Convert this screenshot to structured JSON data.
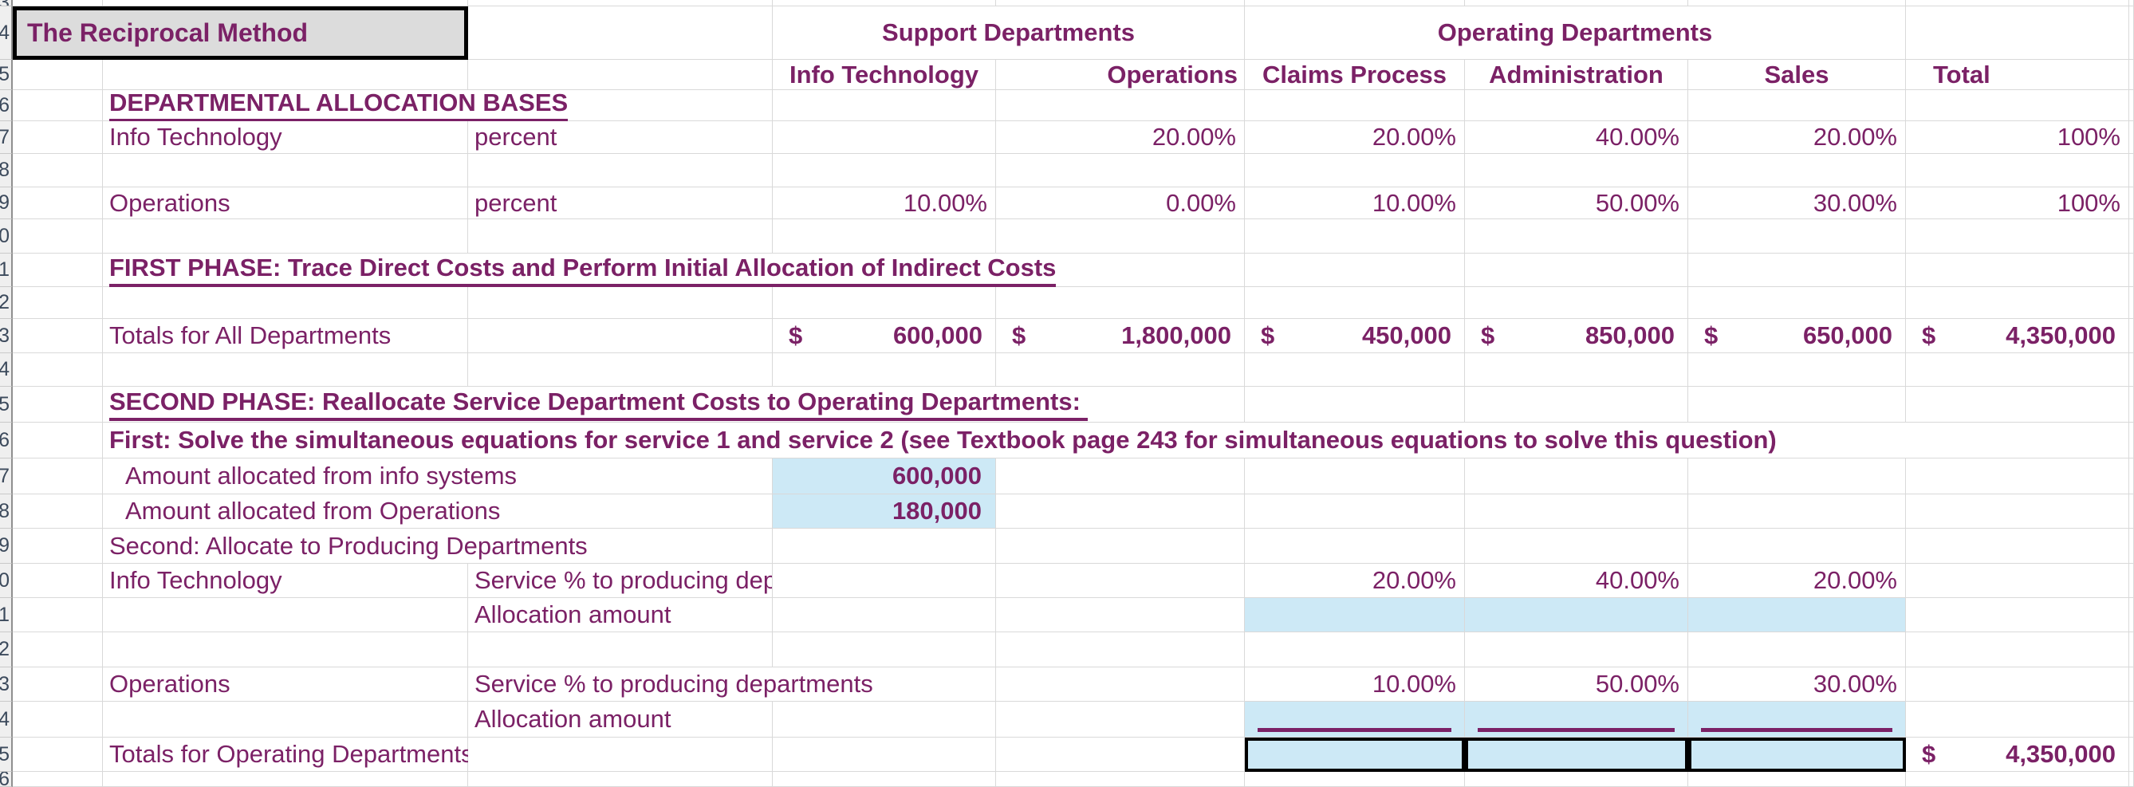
{
  "sheet": {
    "colors": {
      "text_accent": "#7b2166",
      "highlight_blue": "#cde9f6",
      "title_cell_bg": "#dcdcdc",
      "gridline": "#d9d9d9",
      "heavy_border": "#000000"
    },
    "rows": [
      {
        "n": "3",
        "cells": []
      },
      {
        "n": "4",
        "cells": [
          {
            "c": 1,
            "s": 2,
            "t": "The Reciprocal Method",
            "k": "titlebox",
            "name": "sheet-title-cell"
          },
          {
            "c": 4,
            "s": 2,
            "t": "Support Departments",
            "k": "ghead",
            "name": "support-departments-group-header"
          },
          {
            "c": 6,
            "s": 3,
            "t": "Operating Departments",
            "k": "ghead",
            "name": "operating-departments-group-header"
          }
        ]
      },
      {
        "n": "5",
        "cells": [
          {
            "c": 4,
            "t": "Info Technology",
            "k": "chead ctr",
            "name": "col-header-info-technology"
          },
          {
            "c": 5,
            "t": "Operations",
            "k": "chead rgt",
            "name": "col-header-operations"
          },
          {
            "c": 6,
            "t": "Claims Process",
            "k": "chead ctr",
            "name": "col-header-claims-process"
          },
          {
            "c": 7,
            "t": "Administration",
            "k": "chead ctr",
            "name": "col-header-administration"
          },
          {
            "c": 8,
            "t": "Sales",
            "k": "chead ctr",
            "name": "col-header-sales"
          },
          {
            "c": 9,
            "t": "Total",
            "k": "chead hleft",
            "name": "col-header-total"
          }
        ]
      },
      {
        "n": "6",
        "cells": [
          {
            "c": 2,
            "s": 2,
            "t": "DEPARTMENTAL ALLOCATION BASES",
            "k": "h u lab",
            "name": "section-departmental-allocation-bases"
          }
        ]
      },
      {
        "n": "7",
        "cells": [
          {
            "c": 2,
            "t": "Info Technology",
            "k": "lab",
            "name": "row-label-info-technology"
          },
          {
            "c": 3,
            "t": "percent",
            "k": "lab",
            "name": "basis-label-percent"
          },
          {
            "c": 5,
            "t": "20.00%",
            "k": "pct",
            "name": "it-pct-operations"
          },
          {
            "c": 6,
            "t": "20.00%",
            "k": "pct",
            "name": "it-pct-claims-process"
          },
          {
            "c": 7,
            "t": "40.00%",
            "k": "pct",
            "name": "it-pct-administration"
          },
          {
            "c": 8,
            "t": "20.00%",
            "k": "pct",
            "name": "it-pct-sales"
          },
          {
            "c": 9,
            "t": "100%",
            "k": "pct",
            "name": "it-pct-total"
          }
        ]
      },
      {
        "n": "8",
        "cells": []
      },
      {
        "n": "9",
        "cells": [
          {
            "c": 2,
            "t": "Operations",
            "k": "lab",
            "name": "row-label-operations"
          },
          {
            "c": 3,
            "t": "percent",
            "k": "lab",
            "name": "basis-label-percent"
          },
          {
            "c": 4,
            "t": "10.00%",
            "k": "pct",
            "name": "ops-pct-info-technology"
          },
          {
            "c": 5,
            "t": "0.00%",
            "k": "pct",
            "name": "ops-pct-operations"
          },
          {
            "c": 6,
            "t": "10.00%",
            "k": "pct",
            "name": "ops-pct-claims-process"
          },
          {
            "c": 7,
            "t": "50.00%",
            "k": "pct",
            "name": "ops-pct-administration"
          },
          {
            "c": 8,
            "t": "30.00%",
            "k": "pct",
            "name": "ops-pct-sales"
          },
          {
            "c": 9,
            "t": "100%",
            "k": "pct",
            "name": "ops-pct-total"
          }
        ]
      },
      {
        "n": "10",
        "cells": []
      },
      {
        "n": "11",
        "cells": [
          {
            "c": 2,
            "s": 4,
            "t": "FIRST PHASE: Trace Direct Costs and Perform Initial Allocation of Indirect Costs",
            "k": "h u lab",
            "name": "section-first-phase"
          }
        ]
      },
      {
        "n": "12",
        "cells": []
      },
      {
        "n": "13",
        "cells": [
          {
            "c": 2,
            "t": "Totals for All Departments",
            "k": "lab",
            "name": "row-label-totals-all-departments"
          },
          {
            "c": 4,
            "cur": "$",
            "t": "600,000",
            "k": "acct",
            "name": "total-info-technology"
          },
          {
            "c": 5,
            "cur": "$",
            "t": "1,800,000",
            "k": "acct",
            "name": "total-operations"
          },
          {
            "c": 6,
            "cur": "$",
            "t": "450,000",
            "k": "acct",
            "name": "total-claims-process"
          },
          {
            "c": 7,
            "cur": "$",
            "t": "850,000",
            "k": "acct",
            "name": "total-administration"
          },
          {
            "c": 8,
            "cur": "$",
            "t": "650,000",
            "k": "acct",
            "name": "total-sales"
          },
          {
            "c": 9,
            "cur": "$",
            "t": "4,350,000",
            "k": "acct",
            "name": "total-all-departments"
          }
        ]
      },
      {
        "n": "14",
        "cells": []
      },
      {
        "n": "15",
        "cells": [
          {
            "c": 2,
            "s": 4,
            "t": "SECOND PHASE: Reallocate Service Department Costs to Operating Departments: ",
            "k": "h u lab",
            "name": "section-second-phase"
          }
        ]
      },
      {
        "n": "16",
        "cells": [
          {
            "c": 2,
            "s": 8,
            "t": "First: Solve the simultaneous equations for service 1 and service 2 (see Textbook page 243 for simultaneous equations to solve this question)",
            "k": "h lab",
            "name": "instruction-simultaneous-equations"
          }
        ]
      },
      {
        "n": "17",
        "cells": [
          {
            "c": 2,
            "s": 2,
            "t": "Amount allocated from info systems",
            "k": "lab ind",
            "name": "row-label-amount-from-info-systems"
          },
          {
            "c": 4,
            "t": "600,000",
            "k": "num blue",
            "name": "amount-allocated-info-systems"
          }
        ]
      },
      {
        "n": "18",
        "cells": [
          {
            "c": 2,
            "s": 2,
            "t": "Amount allocated from Operations",
            "k": "lab ind",
            "name": "row-label-amount-from-operations"
          },
          {
            "c": 4,
            "t": "180,000",
            "k": "num blue",
            "name": "amount-allocated-operations"
          }
        ]
      },
      {
        "n": "19",
        "cells": [
          {
            "c": 2,
            "s": 2,
            "t": "Second: Allocate to Producing Departments",
            "k": "lab",
            "name": "subsection-allocate-producing-departments"
          }
        ]
      },
      {
        "n": "20",
        "cells": [
          {
            "c": 2,
            "t": "Info Technology",
            "k": "lab",
            "name": "row-label-info-technology"
          },
          {
            "c": 3,
            "t": "Service % to producing departments",
            "k": "lab clip",
            "name": "service-pct-label-clipped"
          },
          {
            "c": 6,
            "t": "20.00%",
            "k": "pct",
            "name": "it-service-pct-claims-process"
          },
          {
            "c": 7,
            "t": "40.00%",
            "k": "pct",
            "name": "it-service-pct-administration"
          },
          {
            "c": 8,
            "t": "20.00%",
            "k": "pct",
            "name": "it-service-pct-sales"
          }
        ]
      },
      {
        "n": "21",
        "cells": [
          {
            "c": 3,
            "t": "Allocation amount",
            "k": "lab",
            "name": "row-label-allocation-amount"
          },
          {
            "c": 6,
            "k": "blue",
            "name": "it-allocation-input-claims-process"
          },
          {
            "c": 7,
            "k": "blue",
            "name": "it-allocation-input-administration"
          },
          {
            "c": 8,
            "k": "blue",
            "name": "it-allocation-input-sales"
          }
        ]
      },
      {
        "n": "22",
        "cells": []
      },
      {
        "n": "23",
        "cells": [
          {
            "c": 2,
            "t": "Operations",
            "k": "lab",
            "name": "row-label-operations"
          },
          {
            "c": 3,
            "s": 2,
            "t": "Service % to producing departments",
            "k": "lab",
            "name": "service-pct-label"
          },
          {
            "c": 6,
            "t": "10.00%",
            "k": "pct",
            "name": "ops-service-pct-claims-process"
          },
          {
            "c": 7,
            "t": "50.00%",
            "k": "pct",
            "name": "ops-service-pct-administration"
          },
          {
            "c": 8,
            "t": "30.00%",
            "k": "pct",
            "name": "ops-service-pct-sales"
          }
        ]
      },
      {
        "n": "24",
        "cells": [
          {
            "c": 3,
            "t": "Allocation amount",
            "k": "lab",
            "name": "row-label-allocation-amount"
          },
          {
            "c": 6,
            "k": "blue sumline",
            "name": "ops-allocation-input-claims-process"
          },
          {
            "c": 7,
            "k": "blue sumline",
            "name": "ops-allocation-input-administration"
          },
          {
            "c": 8,
            "k": "blue sumline",
            "name": "ops-allocation-input-sales"
          }
        ]
      },
      {
        "n": "25",
        "cells": [
          {
            "c": 2,
            "t": "Totals for Operating Departments",
            "k": "lab",
            "name": "row-label-totals-operating-departments"
          },
          {
            "c": 6,
            "k": "blk",
            "name": "operating-total-input-claims-process"
          },
          {
            "c": 7,
            "k": "blk",
            "name": "operating-total-input-administration"
          },
          {
            "c": 8,
            "k": "blk",
            "name": "operating-total-input-sales"
          },
          {
            "c": 9,
            "cur": "$",
            "t": "4,350,000",
            "k": "acct",
            "name": "operating-departments-grand-total"
          }
        ]
      },
      {
        "n": "26",
        "cells": []
      }
    ]
  }
}
